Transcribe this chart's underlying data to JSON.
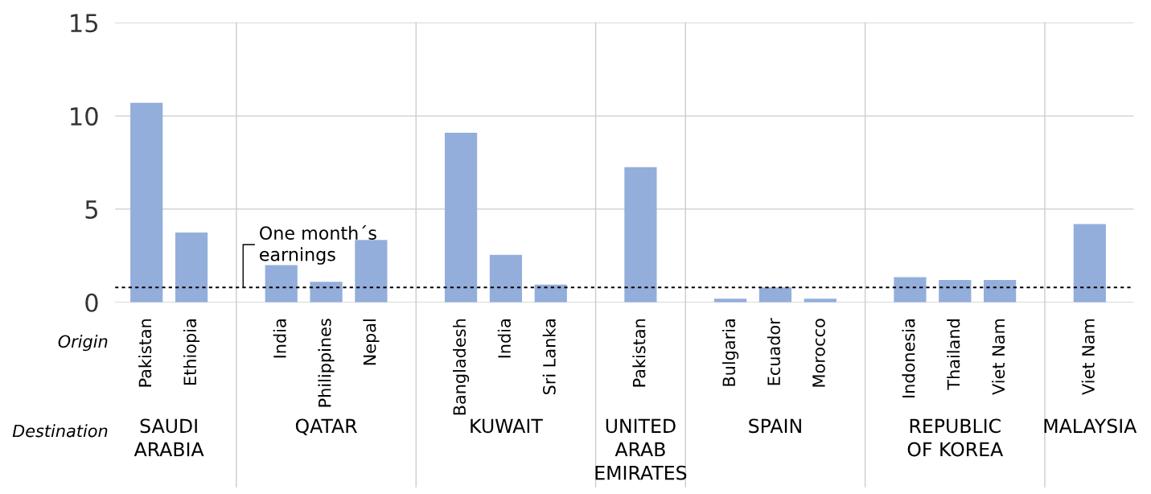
{
  "chart_data": {
    "type": "bar",
    "categories": [
      "Pakistan",
      "Ethiopia",
      null,
      "India",
      "Philippines",
      "Nepal",
      null,
      "Bangladesh",
      "India",
      "Sri Lanka",
      null,
      "Pakistan",
      null,
      "Bulgaria",
      "Ecuador",
      "Morocco",
      null,
      "Indonesia",
      "Thailand",
      "Viet Nam",
      null,
      "Viet Nam"
    ],
    "values": [
      10.7,
      3.75,
      null,
      2.0,
      1.1,
      3.35,
      null,
      9.1,
      2.55,
      0.95,
      null,
      7.25,
      null,
      0.2,
      0.8,
      0.2,
      null,
      1.35,
      1.2,
      1.2,
      null,
      4.2
    ],
    "color": "#93aedb",
    "ylim": [
      0,
      15
    ],
    "yticks": [
      0,
      5,
      10,
      15
    ],
    "grid": true,
    "ref_lines": [
      {
        "axis": "y",
        "value": 0.8,
        "label": "One month´s\nearnings",
        "color": "#000000",
        "line_style": "dotted"
      }
    ],
    "annotations": [
      "Origin",
      "Destination",
      "SAUDI\nARABIA",
      "QATAR",
      "KUWAIT",
      "UNITED\nARAB\nEMIRATES",
      "SPAIN",
      "REPUBLIC\nOF KOREA",
      "MALAYSIA"
    ]
  }
}
